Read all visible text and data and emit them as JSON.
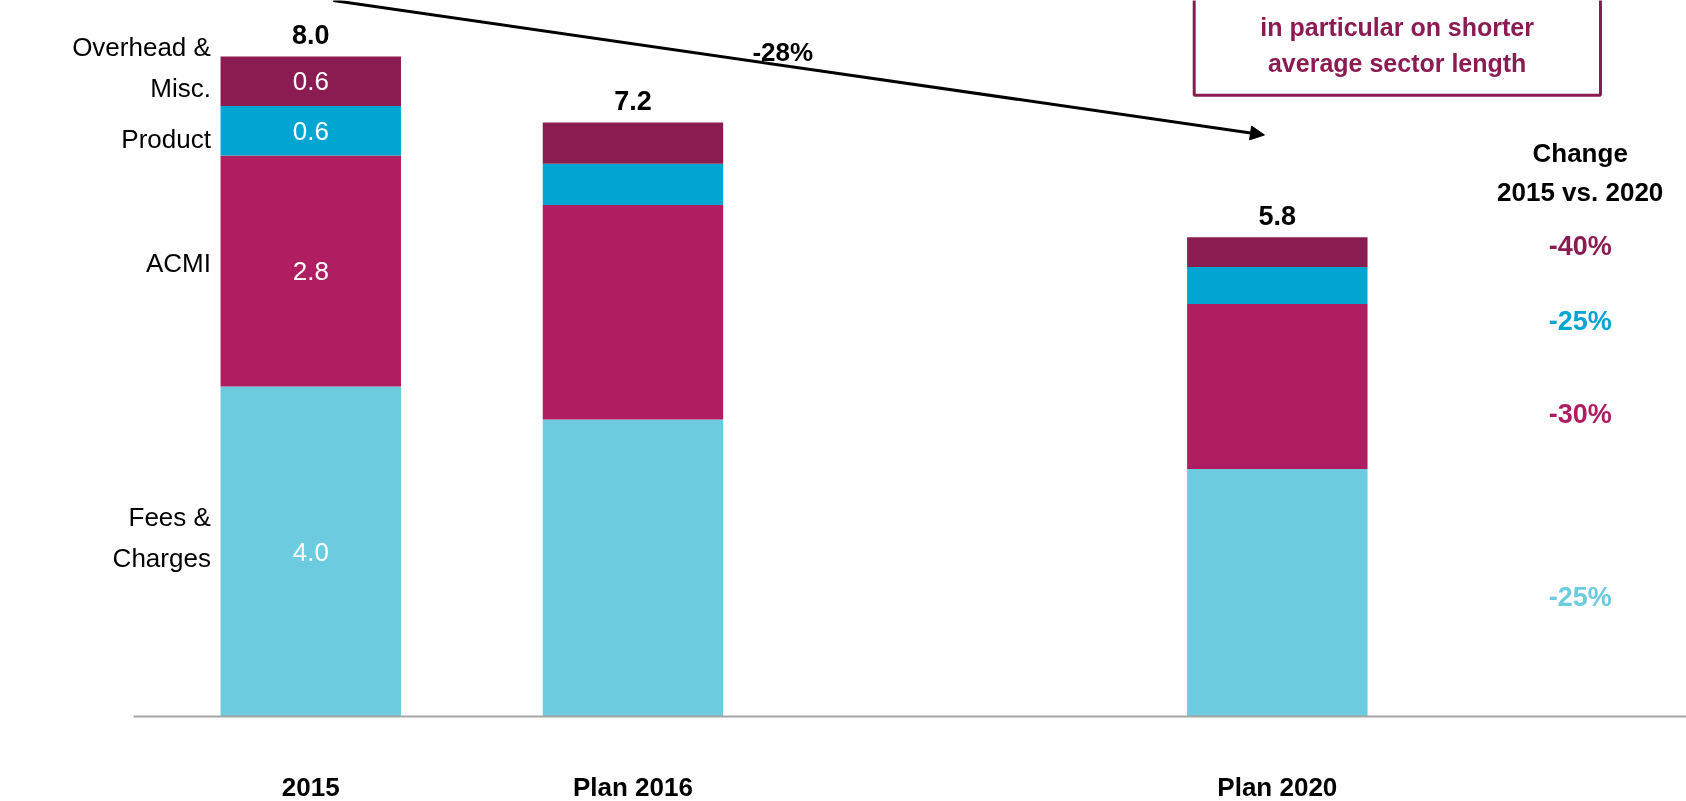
{
  "chart_data": {
    "type": "bar",
    "stacked": true,
    "categories": [
      "2015",
      "Plan 2016",
      null,
      "Plan 2020"
    ],
    "series": [
      {
        "name": "Fees & Charges",
        "color": "#6dcbdf",
        "values": [
          4.0,
          3.6,
          null,
          3.0
        ],
        "value_labels": [
          "4.0",
          null,
          null,
          null
        ]
      },
      {
        "name": "ACMI",
        "color": "#b01e62",
        "values": [
          2.8,
          2.6,
          null,
          2.0
        ],
        "value_labels": [
          "2.8",
          null,
          null,
          null
        ]
      },
      {
        "name": "Product",
        "color": "#00a6d1",
        "values": [
          0.6,
          0.5,
          null,
          0.45
        ],
        "value_labels": [
          "0.6",
          null,
          null,
          null
        ]
      },
      {
        "name": "Overhead & Misc.",
        "color": "#8b1c52",
        "values": [
          0.6,
          0.5,
          null,
          0.36
        ],
        "value_labels": [
          "0.6",
          null,
          null,
          null
        ]
      }
    ],
    "totals": [
      "8.0",
      "7.2",
      null,
      "5.8"
    ],
    "annotations": [
      "-28%",
      "Change\n2015 vs. 2020",
      "-40%",
      "-25%",
      "-30%",
      "-25%",
      "in particular on shorter\naverage sector length"
    ],
    "grid": false
  }
}
